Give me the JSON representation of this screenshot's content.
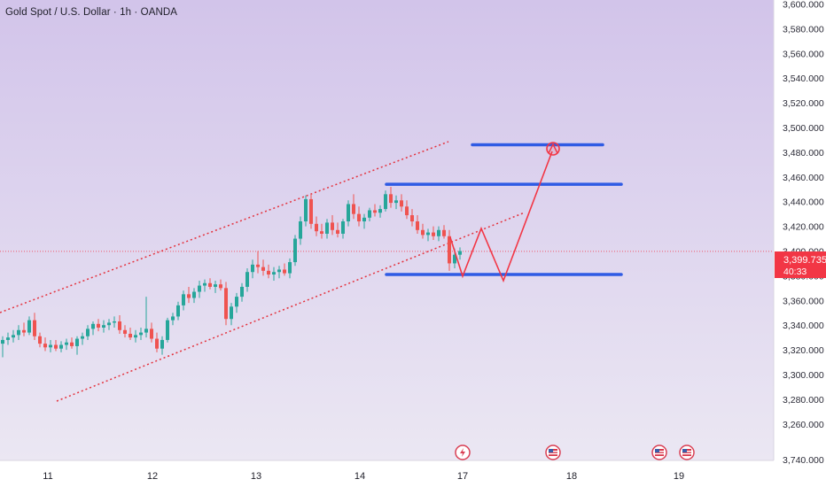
{
  "chart_data": {
    "type": "candlestick",
    "title": "Gold Spot / U.S. Dollar · 1h · OANDA",
    "symbol": "Gold Spot / U.S. Dollar",
    "interval": "1h",
    "exchange": "OANDA",
    "ylim": [
      3240,
      3600
    ],
    "y_ticks": [
      "3,600.000",
      "3,580.000",
      "3,560.000",
      "3,540.000",
      "3,520.000",
      "3,500.000",
      "3,480.000",
      "3,460.000",
      "3,440.000",
      "3,420.000",
      "3,400.000",
      "3,380.000",
      "3,360.000",
      "3,340.000",
      "3,320.000",
      "3,300.000",
      "3,280.000",
      "3,260.000",
      "3,740.000"
    ],
    "x_ticks": [
      "11",
      "12",
      "13",
      "14",
      "17",
      "18",
      "19"
    ],
    "current_price": "3,399.735",
    "countdown": "40:33",
    "colors": {
      "background_top": "#d2c4ea",
      "background_bottom": "#ebe7f3",
      "up": "#26a69a",
      "down": "#ef5350",
      "horizontal_levels": "#2f5be4",
      "channel": "#e4323d",
      "projection": "#f23645",
      "price_label": "#f23645"
    },
    "candles": [
      {
        "o": 3325,
        "h": 3331,
        "l": 3314,
        "c": 3328
      },
      {
        "o": 3328,
        "h": 3334,
        "l": 3324,
        "c": 3330
      },
      {
        "o": 3330,
        "h": 3336,
        "l": 3326,
        "c": 3332
      },
      {
        "o": 3332,
        "h": 3340,
        "l": 3328,
        "c": 3336
      },
      {
        "o": 3336,
        "h": 3342,
        "l": 3331,
        "c": 3334
      },
      {
        "o": 3334,
        "h": 3347,
        "l": 3332,
        "c": 3344
      },
      {
        "o": 3344,
        "h": 3350,
        "l": 3328,
        "c": 3331
      },
      {
        "o": 3331,
        "h": 3334,
        "l": 3322,
        "c": 3325
      },
      {
        "o": 3325,
        "h": 3330,
        "l": 3319,
        "c": 3322
      },
      {
        "o": 3322,
        "h": 3328,
        "l": 3318,
        "c": 3324
      },
      {
        "o": 3324,
        "h": 3328,
        "l": 3319,
        "c": 3321
      },
      {
        "o": 3321,
        "h": 3327,
        "l": 3318,
        "c": 3324
      },
      {
        "o": 3324,
        "h": 3329,
        "l": 3320,
        "c": 3326
      },
      {
        "o": 3326,
        "h": 3330,
        "l": 3321,
        "c": 3323
      },
      {
        "o": 3323,
        "h": 3331,
        "l": 3316,
        "c": 3329
      },
      {
        "o": 3329,
        "h": 3334,
        "l": 3324,
        "c": 3331
      },
      {
        "o": 3331,
        "h": 3340,
        "l": 3328,
        "c": 3337
      },
      {
        "o": 3337,
        "h": 3343,
        "l": 3332,
        "c": 3341
      },
      {
        "o": 3341,
        "h": 3345,
        "l": 3335,
        "c": 3338
      },
      {
        "o": 3338,
        "h": 3344,
        "l": 3334,
        "c": 3340
      },
      {
        "o": 3340,
        "h": 3345,
        "l": 3336,
        "c": 3342
      },
      {
        "o": 3342,
        "h": 3347,
        "l": 3338,
        "c": 3343
      },
      {
        "o": 3343,
        "h": 3348,
        "l": 3333,
        "c": 3336
      },
      {
        "o": 3336,
        "h": 3340,
        "l": 3330,
        "c": 3333
      },
      {
        "o": 3333,
        "h": 3338,
        "l": 3328,
        "c": 3330
      },
      {
        "o": 3330,
        "h": 3336,
        "l": 3326,
        "c": 3332
      },
      {
        "o": 3332,
        "h": 3338,
        "l": 3328,
        "c": 3334
      },
      {
        "o": 3334,
        "h": 3363,
        "l": 3330,
        "c": 3337
      },
      {
        "o": 3337,
        "h": 3342,
        "l": 3326,
        "c": 3329
      },
      {
        "o": 3329,
        "h": 3334,
        "l": 3318,
        "c": 3321
      },
      {
        "o": 3321,
        "h": 3331,
        "l": 3316,
        "c": 3328
      },
      {
        "o": 3328,
        "h": 3346,
        "l": 3326,
        "c": 3344
      },
      {
        "o": 3344,
        "h": 3350,
        "l": 3340,
        "c": 3347
      },
      {
        "o": 3347,
        "h": 3359,
        "l": 3344,
        "c": 3356
      },
      {
        "o": 3356,
        "h": 3368,
        "l": 3352,
        "c": 3365
      },
      {
        "o": 3365,
        "h": 3371,
        "l": 3358,
        "c": 3362
      },
      {
        "o": 3362,
        "h": 3370,
        "l": 3358,
        "c": 3367
      },
      {
        "o": 3367,
        "h": 3376,
        "l": 3362,
        "c": 3372
      },
      {
        "o": 3372,
        "h": 3377,
        "l": 3367,
        "c": 3374
      },
      {
        "o": 3374,
        "h": 3378,
        "l": 3369,
        "c": 3371
      },
      {
        "o": 3371,
        "h": 3376,
        "l": 3366,
        "c": 3373
      },
      {
        "o": 3373,
        "h": 3377,
        "l": 3368,
        "c": 3370
      },
      {
        "o": 3370,
        "h": 3375,
        "l": 3340,
        "c": 3345
      },
      {
        "o": 3345,
        "h": 3358,
        "l": 3340,
        "c": 3355
      },
      {
        "o": 3355,
        "h": 3366,
        "l": 3350,
        "c": 3363
      },
      {
        "o": 3363,
        "h": 3374,
        "l": 3359,
        "c": 3371
      },
      {
        "o": 3371,
        "h": 3386,
        "l": 3367,
        "c": 3383
      },
      {
        "o": 3383,
        "h": 3393,
        "l": 3378,
        "c": 3389
      },
      {
        "o": 3389,
        "h": 3400,
        "l": 3382,
        "c": 3387
      },
      {
        "o": 3387,
        "h": 3393,
        "l": 3380,
        "c": 3384
      },
      {
        "o": 3384,
        "h": 3389,
        "l": 3378,
        "c": 3381
      },
      {
        "o": 3381,
        "h": 3387,
        "l": 3376,
        "c": 3383
      },
      {
        "o": 3383,
        "h": 3388,
        "l": 3378,
        "c": 3385
      },
      {
        "o": 3385,
        "h": 3390,
        "l": 3380,
        "c": 3382
      },
      {
        "o": 3382,
        "h": 3394,
        "l": 3378,
        "c": 3391
      },
      {
        "o": 3391,
        "h": 3413,
        "l": 3388,
        "c": 3410
      },
      {
        "o": 3410,
        "h": 3428,
        "l": 3405,
        "c": 3424
      },
      {
        "o": 3424,
        "h": 3445,
        "l": 3420,
        "c": 3442
      },
      {
        "o": 3442,
        "h": 3446,
        "l": 3418,
        "c": 3422
      },
      {
        "o": 3422,
        "h": 3428,
        "l": 3412,
        "c": 3416
      },
      {
        "o": 3416,
        "h": 3422,
        "l": 3410,
        "c": 3414
      },
      {
        "o": 3414,
        "h": 3426,
        "l": 3410,
        "c": 3423
      },
      {
        "o": 3423,
        "h": 3429,
        "l": 3413,
        "c": 3417
      },
      {
        "o": 3417,
        "h": 3423,
        "l": 3411,
        "c": 3414
      },
      {
        "o": 3414,
        "h": 3426,
        "l": 3410,
        "c": 3424
      },
      {
        "o": 3424,
        "h": 3441,
        "l": 3420,
        "c": 3438
      },
      {
        "o": 3438,
        "h": 3446,
        "l": 3426,
        "c": 3430
      },
      {
        "o": 3430,
        "h": 3436,
        "l": 3420,
        "c": 3424
      },
      {
        "o": 3424,
        "h": 3430,
        "l": 3418,
        "c": 3427
      },
      {
        "o": 3427,
        "h": 3435,
        "l": 3424,
        "c": 3433
      },
      {
        "o": 3433,
        "h": 3438,
        "l": 3428,
        "c": 3431
      },
      {
        "o": 3431,
        "h": 3437,
        "l": 3427,
        "c": 3434
      },
      {
        "o": 3434,
        "h": 3449,
        "l": 3432,
        "c": 3446
      },
      {
        "o": 3446,
        "h": 3452,
        "l": 3435,
        "c": 3439
      },
      {
        "o": 3439,
        "h": 3445,
        "l": 3434,
        "c": 3441
      },
      {
        "o": 3441,
        "h": 3446,
        "l": 3432,
        "c": 3436
      },
      {
        "o": 3436,
        "h": 3441,
        "l": 3426,
        "c": 3429
      },
      {
        "o": 3429,
        "h": 3434,
        "l": 3420,
        "c": 3424
      },
      {
        "o": 3424,
        "h": 3429,
        "l": 3414,
        "c": 3417
      },
      {
        "o": 3417,
        "h": 3422,
        "l": 3410,
        "c": 3413
      },
      {
        "o": 3413,
        "h": 3418,
        "l": 3408,
        "c": 3415
      },
      {
        "o": 3415,
        "h": 3420,
        "l": 3409,
        "c": 3412
      },
      {
        "o": 3412,
        "h": 3420,
        "l": 3408,
        "c": 3417
      },
      {
        "o": 3417,
        "h": 3421,
        "l": 3410,
        "c": 3412
      },
      {
        "o": 3412,
        "h": 3417,
        "l": 3384,
        "c": 3390
      },
      {
        "o": 3390,
        "h": 3402,
        "l": 3386,
        "c": 3397
      },
      {
        "o": 3397,
        "h": 3403,
        "l": 3393,
        "c": 3400
      }
    ],
    "drawings": {
      "horizontal_levels": [
        3486,
        3454,
        3381
      ],
      "channel": "dotted red parallel lines, rising",
      "projection": "red zigzag to target circle near 3,486"
    },
    "event_icons": [
      "lightning",
      "us-flag",
      "us-flag",
      "us-flag"
    ]
  }
}
